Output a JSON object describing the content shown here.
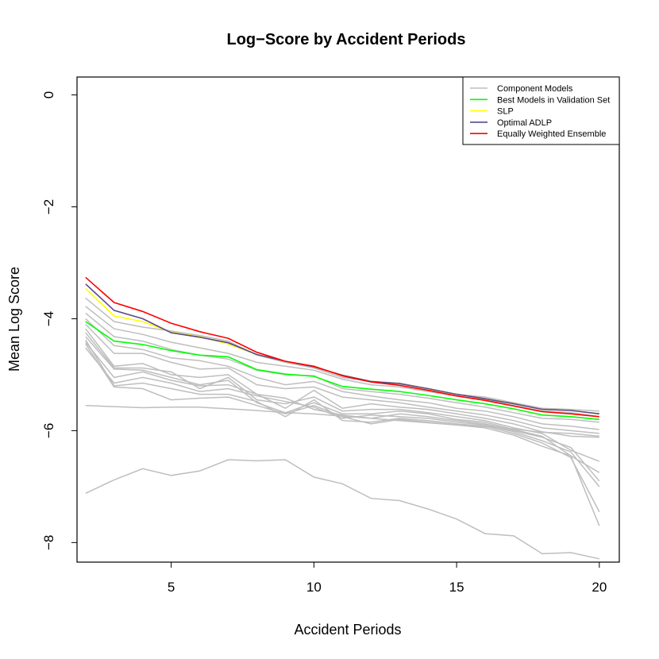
{
  "chart_data": {
    "type": "line",
    "title": "Log−Score by Accident Periods",
    "xlabel": "Accident Periods",
    "ylabel": "Mean Log Score",
    "xlim": [
      1.7,
      20.7
    ],
    "ylim": [
      -8.35,
      0.32
    ],
    "xticks": [
      5,
      10,
      15,
      20
    ],
    "yticks": [
      0,
      -2,
      -4,
      -6,
      -8
    ],
    "xtick_labels": [
      "5",
      "10",
      "15",
      "20"
    ],
    "ytick_labels": [
      "0",
      "−2",
      "−4",
      "−6",
      "−8"
    ],
    "grid": false,
    "legend_position": "top-right",
    "legend": [
      {
        "label": "Component Models",
        "color": "#bebebe"
      },
      {
        "label": "Best Models in Validation Set",
        "color": "#00ff00"
      },
      {
        "label": "SLP",
        "color": "#ffff00"
      },
      {
        "label": "Optimal ADLP",
        "color": "#5a4a8a"
      },
      {
        "label": "Equally Weighted Ensemble",
        "color": "#ff0000"
      }
    ],
    "x": [
      2,
      3,
      4,
      5,
      6,
      7,
      8,
      9,
      10,
      11,
      12,
      13,
      14,
      15,
      16,
      17,
      18,
      19,
      20
    ],
    "component_models": [
      [
        -3.63,
        -4.05,
        -4.15,
        -4.22,
        -4.3,
        -4.4,
        -4.65,
        -4.78,
        -4.88,
        -5.05,
        -5.12,
        -5.15,
        -5.25,
        -5.35,
        -5.4,
        -5.5,
        -5.6,
        -5.62,
        -5.65
      ],
      [
        -3.78,
        -4.18,
        -4.28,
        -4.42,
        -4.52,
        -4.62,
        -4.78,
        -4.85,
        -4.92,
        -5.08,
        -5.18,
        -5.22,
        -5.3,
        -5.38,
        -5.45,
        -5.55,
        -5.65,
        -5.68,
        -5.75
      ],
      [
        -3.9,
        -4.32,
        -4.4,
        -4.55,
        -4.65,
        -4.72,
        -4.92,
        -5.0,
        -5.02,
        -5.25,
        -5.3,
        -5.35,
        -5.42,
        -5.5,
        -5.58,
        -5.68,
        -5.78,
        -5.8,
        -5.85
      ],
      [
        -4.0,
        -4.48,
        -4.55,
        -4.7,
        -4.75,
        -4.85,
        -5.05,
        -5.18,
        -5.12,
        -5.3,
        -5.38,
        -5.45,
        -5.5,
        -5.6,
        -5.65,
        -5.75,
        -5.88,
        -5.92,
        -5.98
      ],
      [
        -4.1,
        -4.62,
        -4.62,
        -4.78,
        -4.9,
        -4.88,
        -5.18,
        -5.25,
        -5.22,
        -5.4,
        -5.45,
        -5.5,
        -5.58,
        -5.65,
        -5.72,
        -5.82,
        -5.95,
        -6.0,
        -6.05
      ],
      [
        -4.18,
        -4.85,
        -4.8,
        -5.0,
        -5.05,
        -5.0,
        -5.35,
        -5.6,
        -5.28,
        -5.6,
        -5.52,
        -5.58,
        -5.62,
        -5.7,
        -5.78,
        -5.88,
        -6.02,
        -6.1,
        -6.12
      ],
      [
        -4.25,
        -4.88,
        -4.88,
        -4.95,
        -5.25,
        -5.05,
        -5.45,
        -5.52,
        -5.4,
        -5.65,
        -5.62,
        -5.62,
        -5.68,
        -5.75,
        -5.82,
        -5.95,
        -6.05,
        -6.35,
        -6.55
      ],
      [
        -4.32,
        -4.9,
        -4.92,
        -5.05,
        -5.18,
        -5.1,
        -5.5,
        -5.68,
        -5.5,
        -5.7,
        -5.7,
        -5.65,
        -5.7,
        -5.8,
        -5.85,
        -5.98,
        -6.1,
        -6.45,
        -6.75
      ],
      [
        -4.42,
        -5.05,
        -4.95,
        -5.1,
        -5.2,
        -5.18,
        -5.35,
        -5.42,
        -5.62,
        -5.72,
        -5.78,
        -5.7,
        -5.75,
        -5.82,
        -5.88,
        -6.0,
        -6.12,
        -6.3,
        -6.9
      ],
      [
        -4.52,
        -5.15,
        -5.05,
        -5.15,
        -5.3,
        -5.25,
        -5.38,
        -5.48,
        -5.58,
        -5.78,
        -5.72,
        -5.75,
        -5.78,
        -5.85,
        -5.9,
        -6.02,
        -6.18,
        -6.38,
        -7.0
      ],
      [
        -4.38,
        -5.2,
        -5.15,
        -5.25,
        -5.35,
        -5.35,
        -5.48,
        -5.75,
        -5.45,
        -5.82,
        -5.85,
        -5.78,
        -5.82,
        -5.88,
        -5.92,
        -6.05,
        -6.22,
        -6.48,
        -7.45
      ],
      [
        -4.45,
        -5.22,
        -5.25,
        -5.45,
        -5.42,
        -5.4,
        -5.55,
        -5.7,
        -5.55,
        -5.75,
        -5.88,
        -5.8,
        -5.85,
        -5.9,
        -5.95,
        -6.08,
        -6.28,
        -6.45,
        -7.7
      ],
      [
        -5.55,
        -5.57,
        -5.59,
        -5.58,
        -5.58,
        -5.61,
        -5.64,
        -5.68,
        -5.7,
        -5.74,
        -5.78,
        -5.82,
        -5.86,
        -5.9,
        -5.93,
        -5.97,
        -6.03,
        -6.05,
        -6.1
      ],
      [
        -7.12,
        -6.88,
        -6.68,
        -6.8,
        -6.72,
        -6.52,
        -6.54,
        -6.52,
        -6.83,
        -6.95,
        -7.21,
        -7.25,
        -7.4,
        -7.58,
        -7.84,
        -7.88,
        -8.2,
        -8.18,
        -8.29
      ]
    ],
    "series": [
      {
        "name": "Best Models in Validation Set",
        "color": "#00ff00",
        "values": [
          -4.05,
          -4.4,
          -4.46,
          -4.57,
          -4.65,
          -4.68,
          -4.91,
          -4.99,
          -5.03,
          -5.21,
          -5.26,
          -5.3,
          -5.37,
          -5.45,
          -5.52,
          -5.61,
          -5.72,
          -5.75,
          -5.8
        ]
      },
      {
        "name": "SLP",
        "color": "#ffff00",
        "values": [
          -3.46,
          -3.95,
          -4.05,
          -4.24,
          -4.32,
          -4.45,
          -4.64,
          -4.76,
          -4.86,
          -5.01,
          -5.12,
          -5.16,
          -5.25,
          -5.35,
          -5.43,
          -5.52,
          -5.62,
          -5.64,
          -5.7
        ]
      },
      {
        "name": "Optimal ADLP",
        "color": "#5a4a8a",
        "values": [
          -3.38,
          -3.85,
          -4.0,
          -4.25,
          -4.33,
          -4.43,
          -4.64,
          -4.76,
          -4.86,
          -5.01,
          -5.12,
          -5.16,
          -5.25,
          -5.35,
          -5.43,
          -5.52,
          -5.62,
          -5.64,
          -5.7
        ]
      },
      {
        "name": "Equally Weighted Ensemble",
        "color": "#ff0000",
        "values": [
          -3.26,
          -3.71,
          -3.87,
          -4.08,
          -4.23,
          -4.35,
          -4.6,
          -4.76,
          -4.85,
          -5.02,
          -5.13,
          -5.19,
          -5.28,
          -5.38,
          -5.46,
          -5.56,
          -5.66,
          -5.7,
          -5.75
        ]
      }
    ]
  }
}
